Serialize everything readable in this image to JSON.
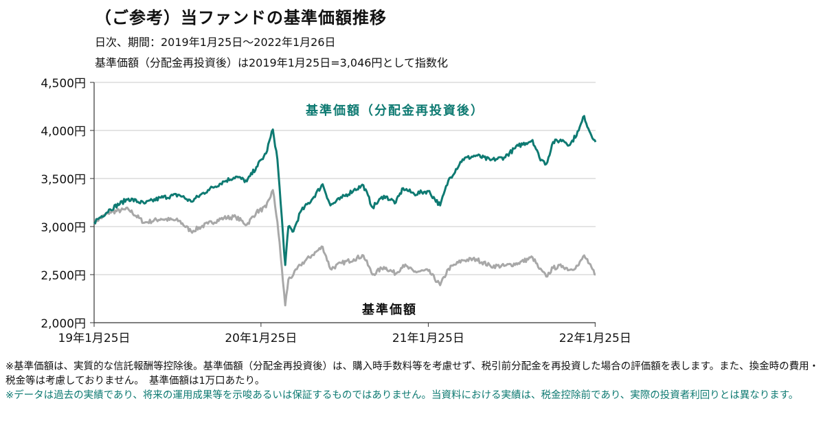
{
  "header": {
    "title": "（ご参考）当ファンドの基準価額推移",
    "period": "日次、期間：2019年1月25日～2022年1月26日",
    "index_note": "基準価額（分配金再投資後）は2019年1月25日=3,046円として指数化"
  },
  "notes": {
    "note1": "※基準価額は、実質的な信託報酬等控除後。基準価額（分配金再投資後）は、購入時手数料等を考慮せず、税引前分配金を再投資した場合の評価額を表します。また、換金時の費用・税金等は考慮しておりません。　基準価額は1万口あたり。",
    "note2": "※データは過去の実績であり、将来の運用成果等を示唆あるいは保証するものではありません。当資料における実績は、税金控除前であり、実際の投資者利回りとは異なります。"
  },
  "chart_data": {
    "type": "line",
    "ylim": [
      2000,
      4500
    ],
    "yticks": [
      2000,
      2500,
      3000,
      3500,
      4000,
      4500
    ],
    "ytick_labels": [
      "2,000円",
      "2,500円",
      "3,000円",
      "3,500円",
      "4,000円",
      "4,500円"
    ],
    "xlim": [
      "2019-01-25",
      "2022-01-26"
    ],
    "xticks": [
      "2019-01-25",
      "2020-01-25",
      "2021-01-25",
      "2022-01-25"
    ],
    "xtick_labels": [
      "19年1月25日",
      "20年1月25日",
      "21年1月25日",
      "22年1月25日"
    ],
    "grid": true,
    "series": [
      {
        "name": "基準価額（分配金再投資後）",
        "color": "#0e7a72",
        "points": [
          [
            "2019-01-25",
            3046
          ],
          [
            "2019-03-01",
            3180
          ],
          [
            "2019-04-10",
            3290
          ],
          [
            "2019-05-15",
            3240
          ],
          [
            "2019-06-20",
            3300
          ],
          [
            "2019-07-30",
            3330
          ],
          [
            "2019-08-25",
            3260
          ],
          [
            "2019-10-01",
            3380
          ],
          [
            "2019-11-05",
            3470
          ],
          [
            "2019-12-01",
            3520
          ],
          [
            "2019-12-25",
            3470
          ],
          [
            "2020-01-15",
            3620
          ],
          [
            "2020-02-05",
            3760
          ],
          [
            "2020-02-20",
            4010
          ],
          [
            "2020-03-01",
            3700
          ],
          [
            "2020-03-08",
            3250
          ],
          [
            "2020-03-18",
            2600
          ],
          [
            "2020-03-25",
            3000
          ],
          [
            "2020-04-05",
            2950
          ],
          [
            "2020-04-20",
            3150
          ],
          [
            "2020-05-15",
            3280
          ],
          [
            "2020-06-08",
            3440
          ],
          [
            "2020-06-25",
            3220
          ],
          [
            "2020-07-20",
            3300
          ],
          [
            "2020-08-15",
            3380
          ],
          [
            "2020-09-05",
            3430
          ],
          [
            "2020-09-25",
            3200
          ],
          [
            "2020-10-20",
            3320
          ],
          [
            "2020-11-15",
            3250
          ],
          [
            "2020-12-01",
            3400
          ],
          [
            "2020-12-25",
            3340
          ],
          [
            "2021-01-25",
            3370
          ],
          [
            "2021-02-20",
            3220
          ],
          [
            "2021-03-10",
            3480
          ],
          [
            "2021-04-10",
            3700
          ],
          [
            "2021-05-10",
            3740
          ],
          [
            "2021-06-10",
            3690
          ],
          [
            "2021-07-10",
            3720
          ],
          [
            "2021-08-10",
            3840
          ],
          [
            "2021-09-10",
            3900
          ],
          [
            "2021-09-25",
            3720
          ],
          [
            "2021-10-10",
            3650
          ],
          [
            "2021-10-25",
            3880
          ],
          [
            "2021-11-15",
            3900
          ],
          [
            "2021-12-01",
            3850
          ],
          [
            "2021-12-20",
            4000
          ],
          [
            "2022-01-01",
            4150
          ],
          [
            "2022-01-10",
            4020
          ],
          [
            "2022-01-26",
            3880
          ]
        ]
      },
      {
        "name": "基準価額",
        "color": "#a8a8a8",
        "points": [
          [
            "2019-01-25",
            3046
          ],
          [
            "2019-03-01",
            3150
          ],
          [
            "2019-04-10",
            3180
          ],
          [
            "2019-05-15",
            3040
          ],
          [
            "2019-06-20",
            3080
          ],
          [
            "2019-07-30",
            3060
          ],
          [
            "2019-08-25",
            2950
          ],
          [
            "2019-10-01",
            3030
          ],
          [
            "2019-11-05",
            3090
          ],
          [
            "2019-12-01",
            3100
          ],
          [
            "2019-12-25",
            3020
          ],
          [
            "2020-01-15",
            3150
          ],
          [
            "2020-02-05",
            3200
          ],
          [
            "2020-02-20",
            3380
          ],
          [
            "2020-03-01",
            3050
          ],
          [
            "2020-03-08",
            2700
          ],
          [
            "2020-03-18",
            2180
          ],
          [
            "2020-03-25",
            2450
          ],
          [
            "2020-04-05",
            2500
          ],
          [
            "2020-04-20",
            2600
          ],
          [
            "2020-05-15",
            2700
          ],
          [
            "2020-06-08",
            2790
          ],
          [
            "2020-06-25",
            2560
          ],
          [
            "2020-07-20",
            2620
          ],
          [
            "2020-08-15",
            2660
          ],
          [
            "2020-09-05",
            2700
          ],
          [
            "2020-09-25",
            2500
          ],
          [
            "2020-10-20",
            2580
          ],
          [
            "2020-11-15",
            2510
          ],
          [
            "2020-12-01",
            2600
          ],
          [
            "2020-12-25",
            2530
          ],
          [
            "2021-01-25",
            2540
          ],
          [
            "2021-02-20",
            2390
          ],
          [
            "2021-03-10",
            2560
          ],
          [
            "2021-04-10",
            2650
          ],
          [
            "2021-05-10",
            2660
          ],
          [
            "2021-06-10",
            2590
          ],
          [
            "2021-07-10",
            2590
          ],
          [
            "2021-08-10",
            2620
          ],
          [
            "2021-09-10",
            2680
          ],
          [
            "2021-09-25",
            2560
          ],
          [
            "2021-10-10",
            2480
          ],
          [
            "2021-10-25",
            2570
          ],
          [
            "2021-11-15",
            2590
          ],
          [
            "2021-12-01",
            2550
          ],
          [
            "2021-12-20",
            2600
          ],
          [
            "2022-01-01",
            2700
          ],
          [
            "2022-01-10",
            2620
          ],
          [
            "2022-01-26",
            2500
          ]
        ]
      }
    ],
    "colors": {
      "grid": "#c8c8c8",
      "axis": "#333333"
    }
  }
}
